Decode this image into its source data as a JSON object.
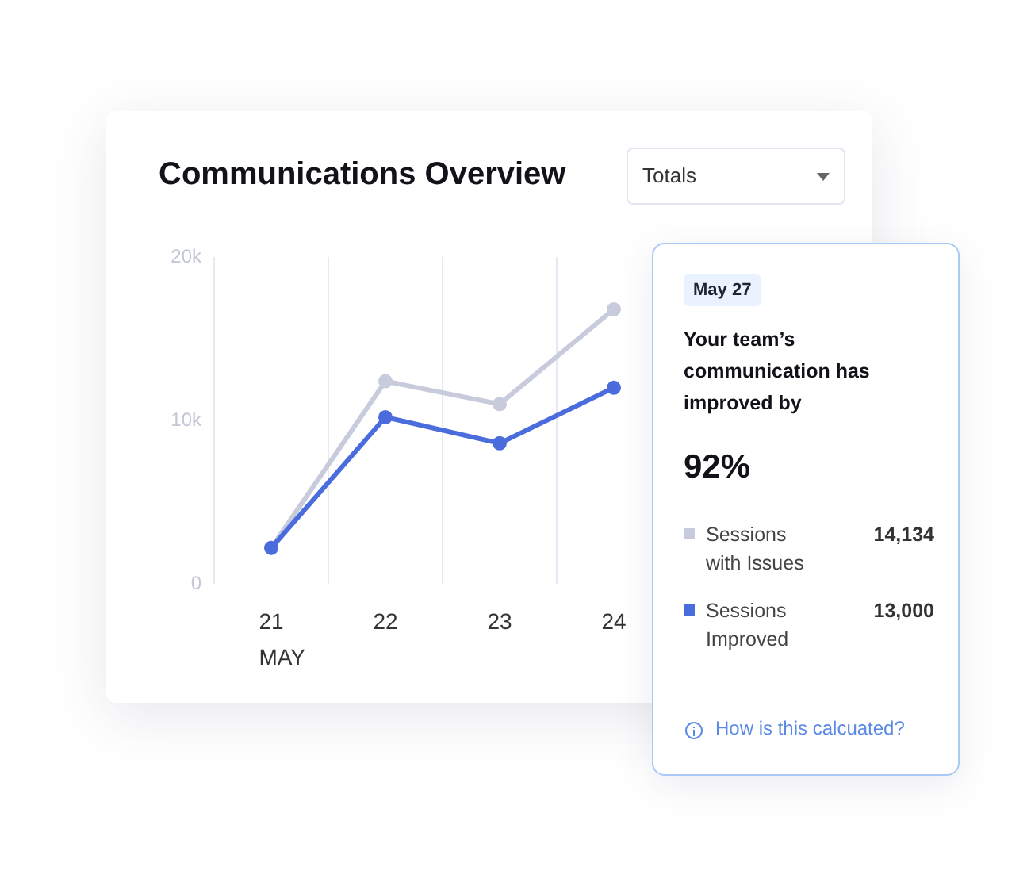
{
  "chart_data": {
    "type": "line",
    "title": "Communications Overview",
    "xlabel": "MAY",
    "categories": [
      "21",
      "22",
      "23",
      "24"
    ],
    "series": [
      {
        "name": "Sessions with Issues",
        "color": "#c8cbdb",
        "values": [
          2200,
          12400,
          11000,
          16800
        ]
      },
      {
        "name": "Sessions Improved",
        "color": "#4a6cdc",
        "values": [
          2200,
          10200,
          8600,
          12000
        ]
      }
    ],
    "ylim": [
      0,
      20000
    ],
    "yticks": [
      0,
      {
        "value": 10000,
        "label": "10k"
      },
      {
        "value": 20000,
        "label": "20k"
      }
    ],
    "grid": "x",
    "legend": "right",
    "marker": "circle",
    "line_style": "solid",
    "annotations": [
      "Totals",
      "May 27",
      "Your team’s communication has improved by",
      "92%",
      "14,134",
      "13,000",
      "How is this calcuated?"
    ]
  }
}
